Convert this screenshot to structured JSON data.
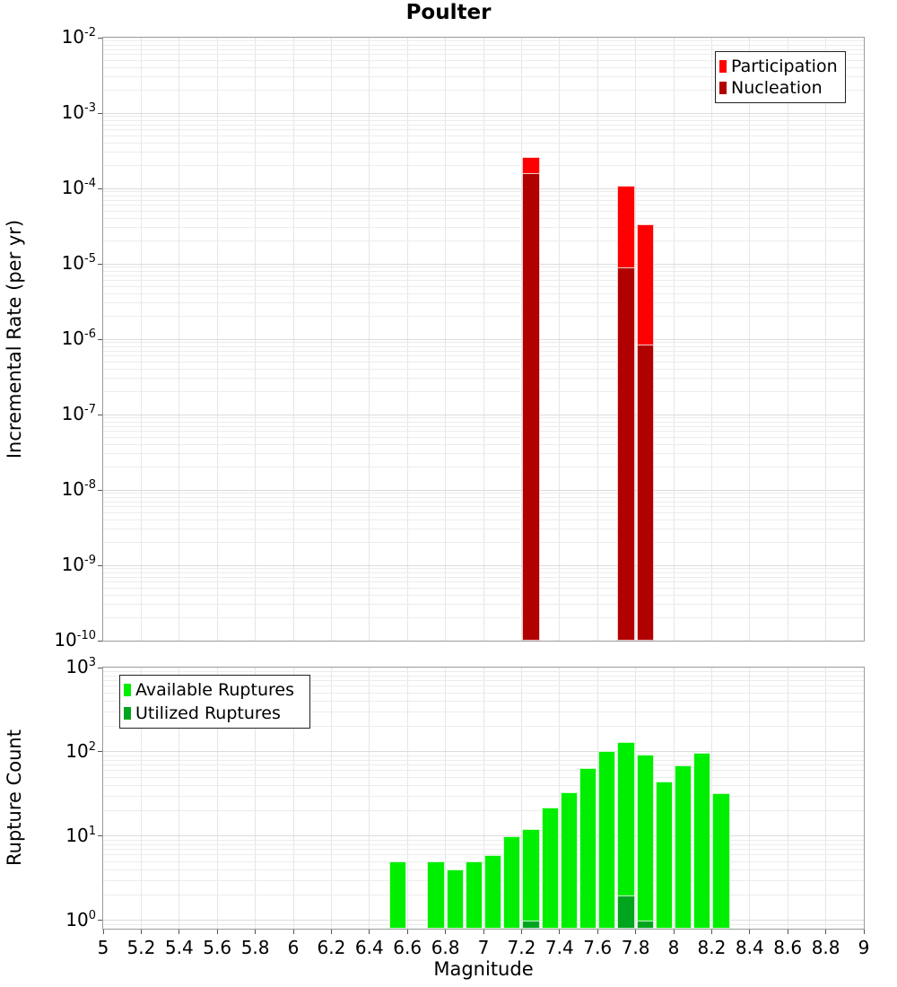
{
  "page": {
    "title": "Poulter"
  },
  "chart_data": [
    {
      "type": "bar",
      "title": "Poulter",
      "xlabel": "Magnitude",
      "ylabel": "Incremental Rate (per yr)",
      "x_range": [
        5,
        9
      ],
      "x_tick_step": 0.2,
      "y_scale": "log",
      "y_range": [
        1e-10,
        0.01
      ],
      "y_tick_exponents": [
        -2,
        -3,
        -4,
        -5,
        -6,
        -7,
        -8,
        -9,
        -10
      ],
      "bin_width": 0.1,
      "grid": true,
      "legend_position": "top-right",
      "series": [
        {
          "name": "Participation",
          "color": "#FF0000",
          "bins": [
            7.2,
            7.7,
            7.8
          ],
          "values": [
            0.00026,
            0.00011,
            3.3e-05
          ]
        },
        {
          "name": "Nucleation",
          "color": "#B00000",
          "bins": [
            7.2,
            7.7,
            7.8
          ],
          "values": [
            0.00016,
            9e-06,
            8.5e-07
          ]
        }
      ]
    },
    {
      "type": "bar",
      "title": "",
      "xlabel": "Magnitude",
      "ylabel": "Rupture Count",
      "x_range": [
        5,
        9
      ],
      "x_tick_step": 0.2,
      "x_tick_labels": [
        "5",
        "5.2",
        "5.4",
        "5.6",
        "5.8",
        "6",
        "6.2",
        "6.4",
        "6.6",
        "6.8",
        "7",
        "7.2",
        "7.4",
        "7.6",
        "7.8",
        "8",
        "8.2",
        "8.4",
        "8.6",
        "8.8",
        "9"
      ],
      "y_scale": "log",
      "y_range": [
        0.8,
        1000
      ],
      "y_tick_exponents": [
        3,
        2,
        1,
        0
      ],
      "bin_width": 0.1,
      "grid": true,
      "legend_position": "top-left",
      "series": [
        {
          "name": "Available Ruptures",
          "color": "#00EE00",
          "bins": [
            6.5,
            6.7,
            6.8,
            6.9,
            7.0,
            7.1,
            7.2,
            7.3,
            7.4,
            7.5,
            7.6,
            7.7,
            7.8,
            7.9,
            8.0,
            8.1,
            8.2
          ],
          "values": [
            5,
            5,
            4,
            5,
            6,
            10,
            12,
            22,
            33,
            64,
            102,
            130,
            93,
            45,
            70,
            97,
            32
          ]
        },
        {
          "name": "Utilized Ruptures",
          "color": "#00A51E",
          "bins": [
            7.2,
            7.7,
            7.8
          ],
          "values": [
            1,
            2,
            1
          ]
        }
      ]
    }
  ]
}
